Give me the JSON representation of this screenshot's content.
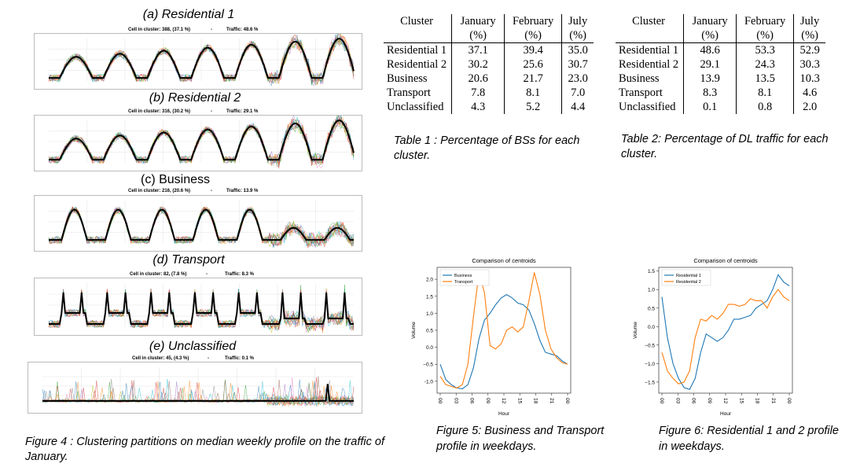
{
  "fig4": {
    "panels": [
      {
        "title": "(a) Residential 1",
        "cells": "Cell in cluster: 388, (37.1 %)",
        "sep": "-",
        "traffic": "Traffic: 48.6 %"
      },
      {
        "title": "(b) Residential 2",
        "cells": "Cell in cluster: 316, (30.2 %)",
        "sep": "-",
        "traffic": "Traffic: 29.1 %"
      },
      {
        "title": "(c) Business",
        "cells": "Cell in cluster: 216, (20.6 %)",
        "sep": "-",
        "traffic": "Traffic: 13.9 %"
      },
      {
        "title": "(d) Transport",
        "cells": "Cell in cluster: 82, (7.8 %)",
        "sep": "-",
        "traffic": "Traffic: 8.3 %"
      },
      {
        "title": "(e) Unclassified",
        "cells": "Cell in cluster: 45, (4.3 %)",
        "sep": "-",
        "traffic": "Traffic: 0.1 %"
      }
    ],
    "caption": "Figure 4 : Clustering partitions on median weekly profile on the traffic of January."
  },
  "table1": {
    "headers": [
      "Cluster",
      "January (%)",
      "February (%)",
      "July (%)"
    ],
    "rows": [
      [
        "Residential 1",
        "37.1",
        "39.4",
        "35.0"
      ],
      [
        "Residential 2",
        "30.2",
        "25.6",
        "30.7"
      ],
      [
        "Business",
        "20.6",
        "21.7",
        "23.0"
      ],
      [
        "Transport",
        "7.8",
        "8.1",
        "7.0"
      ],
      [
        "Unclassified",
        "4.3",
        "5.2",
        "4.4"
      ]
    ],
    "caption": "Table 1 : Percentage of BSs for each cluster."
  },
  "table2": {
    "headers": [
      "Cluster",
      "January (%)",
      "February (%)",
      "July (%)"
    ],
    "rows": [
      [
        "Residential 1",
        "48.6",
        "53.3",
        "52.9"
      ],
      [
        "Residential 2",
        "29.1",
        "24.3",
        "30.3"
      ],
      [
        "Business",
        "13.9",
        "13.5",
        "10.3"
      ],
      [
        "Transport",
        "8.3",
        "8.1",
        "4.6"
      ],
      [
        "Unclassified",
        "0.1",
        "0.8",
        "2.0"
      ]
    ],
    "caption": "Table 2: Percentage of DL traffic for each cluster."
  },
  "chart_data": [
    {
      "type": "line",
      "title": "Comparison of centroids",
      "xlabel": "Hour",
      "ylabel": "Volume",
      "x": [
        0,
        1,
        2,
        3,
        4,
        5,
        6,
        7,
        8,
        9,
        10,
        11,
        12,
        13,
        14,
        15,
        16,
        17,
        18,
        19,
        20,
        21,
        22,
        23
      ],
      "xticks": [
        "00",
        "03",
        "06",
        "09",
        "12",
        "15",
        "18",
        "21",
        "00"
      ],
      "yticks": [
        "-1.0",
        "−0.5",
        "0.0",
        "0.5",
        "1.0",
        "1.5",
        "2.0"
      ],
      "ylim": [
        -1.35,
        2.35
      ],
      "series": [
        {
          "name": "Business",
          "color": "#1f77b4",
          "values": [
            -0.5,
            -0.95,
            -1.1,
            -1.2,
            -1.22,
            -1.1,
            -0.6,
            0.25,
            0.8,
            1.0,
            1.25,
            1.45,
            1.55,
            1.45,
            1.3,
            1.25,
            1.1,
            0.7,
            0.2,
            -0.15,
            -0.2,
            -0.25,
            -0.4,
            -0.5
          ]
        },
        {
          "name": "Transport",
          "color": "#ff7f0e",
          "values": [
            -0.85,
            -1.1,
            -1.15,
            -1.2,
            -1.1,
            -0.5,
            0.9,
            2.2,
            1.6,
            0.05,
            -0.05,
            0.1,
            0.5,
            0.6,
            0.45,
            0.6,
            1.35,
            2.2,
            1.55,
            0.5,
            -0.05,
            -0.3,
            -0.45,
            -0.5
          ]
        }
      ],
      "legend": "top-left",
      "caption": "Figure 5: Business and Transport profile in weekdays."
    },
    {
      "type": "line",
      "title": "Comparison of centroids",
      "xlabel": "Hour",
      "ylabel": "Volume",
      "x": [
        0,
        1,
        2,
        3,
        4,
        5,
        6,
        7,
        8,
        9,
        10,
        11,
        12,
        13,
        14,
        15,
        16,
        17,
        18,
        19,
        20,
        21,
        22,
        23
      ],
      "xticks": [
        "00",
        "03",
        "06",
        "09",
        "12",
        "15",
        "18",
        "21",
        "00"
      ],
      "yticks": [
        "1.5",
        "1.0",
        "0.5",
        "0.0",
        "−0.5",
        "−1.0",
        "−1.5"
      ],
      "ylim": [
        -1.8,
        1.6
      ],
      "series": [
        {
          "name": "Residential 1",
          "color": "#1f77b4",
          "values": [
            0.8,
            -0.3,
            -1.0,
            -1.4,
            -1.65,
            -1.7,
            -1.4,
            -0.7,
            -0.2,
            -0.3,
            -0.4,
            -0.3,
            -0.1,
            0.2,
            0.2,
            0.25,
            0.3,
            0.5,
            0.6,
            0.7,
            1.0,
            1.4,
            1.2,
            1.1
          ]
        },
        {
          "name": "Residential 2",
          "color": "#ff7f0e",
          "values": [
            -0.7,
            -1.2,
            -1.4,
            -1.55,
            -1.5,
            -1.2,
            -0.3,
            0.2,
            0.15,
            0.3,
            0.2,
            0.35,
            0.6,
            0.6,
            0.55,
            0.6,
            0.75,
            0.7,
            0.7,
            0.5,
            0.8,
            1.0,
            0.8,
            0.7
          ]
        }
      ],
      "legend": "top-left",
      "caption": "Figure 6: Residential 1 and 2 profile in weekdays."
    }
  ]
}
